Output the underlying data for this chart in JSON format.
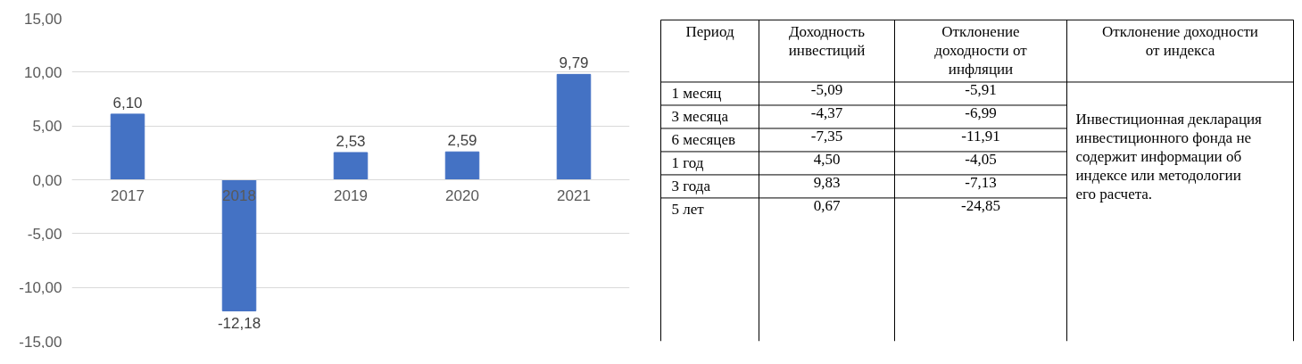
{
  "chart_data": [
    {
      "type": "bar",
      "categories": [
        "2017",
        "2018",
        "2019",
        "2020",
        "2021"
      ],
      "values": [
        6.1,
        -12.18,
        2.53,
        2.59,
        9.79
      ],
      "value_labels": [
        "6,10",
        "-12,18",
        "2,53",
        "2,59",
        "9,79"
      ],
      "color": "#4472c4",
      "ylim": [
        -15,
        15
      ],
      "yticks": [
        {
          "value": -15,
          "label": "-15,00"
        },
        {
          "value": -10,
          "label": "-10,00"
        },
        {
          "value": -5,
          "label": "-5,00"
        },
        {
          "value": 0,
          "label": "0,00"
        },
        {
          "value": 5,
          "label": "5,00"
        },
        {
          "value": 10,
          "label": "10,00"
        },
        {
          "value": 15,
          "label": "15,00"
        }
      ],
      "grid": "y"
    },
    {
      "type": "other",
      "annotations": [
        "Период",
        "Доходность инвестиций",
        "Отклонение доходности от инфляции",
        "Отклонение доходности от индекса",
        "1 месяц",
        "-5,09",
        "-5,91",
        "3 месяца",
        "-4,37",
        "-6,99",
        "6 месяцев",
        "-7,35",
        "-11,91",
        "1 год",
        "4,50",
        "-4,05",
        "3 года",
        "9,83",
        "-7,13",
        "5 лет",
        "0,67",
        "-24,85",
        "Инвестиционная декларация инвестиционного фонда не содержит информации об индексе или методологии его расчета."
      ]
    }
  ]
}
